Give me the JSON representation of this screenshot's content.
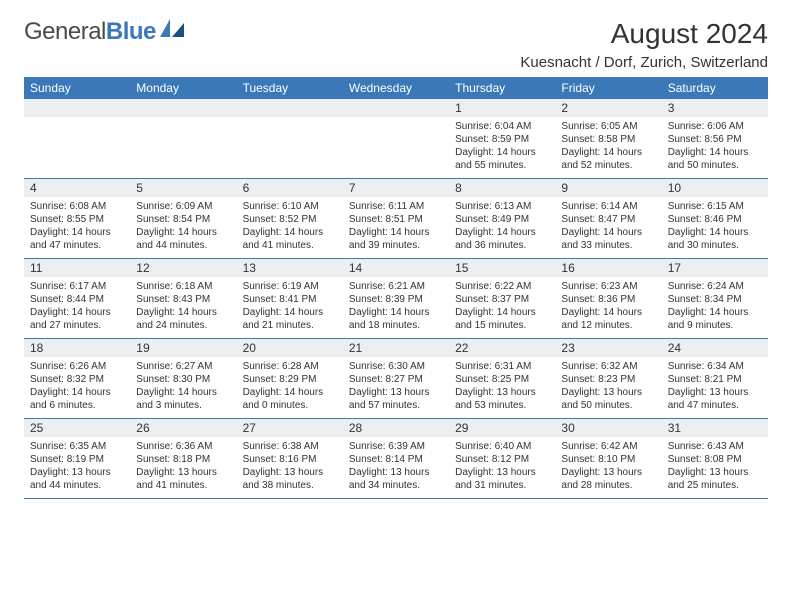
{
  "logo": {
    "text1": "General",
    "text2": "Blue"
  },
  "title": "August 2024",
  "location": "Kuesnacht / Dorf, Zurich, Switzerland",
  "colors": {
    "header_bg": "#3a78b8",
    "header_text": "#ffffff",
    "spacer_bg": "#eceff1",
    "rule": "#3a78b8",
    "body_text": "#333333",
    "logo_gray": "#4a4a4a",
    "logo_blue": "#3a78b8",
    "page_bg": "#ffffff"
  },
  "font": {
    "family": "Arial",
    "title_size": 28,
    "location_size": 15,
    "day_header_size": 12,
    "daynum_size": 12,
    "info_size": 10
  },
  "day_headers": [
    "Sunday",
    "Monday",
    "Tuesday",
    "Wednesday",
    "Thursday",
    "Friday",
    "Saturday"
  ],
  "weeks": [
    [
      null,
      null,
      null,
      null,
      {
        "n": "1",
        "sr": "6:04 AM",
        "ss": "8:59 PM",
        "dl": "14 hours and 55 minutes."
      },
      {
        "n": "2",
        "sr": "6:05 AM",
        "ss": "8:58 PM",
        "dl": "14 hours and 52 minutes."
      },
      {
        "n": "3",
        "sr": "6:06 AM",
        "ss": "8:56 PM",
        "dl": "14 hours and 50 minutes."
      }
    ],
    [
      {
        "n": "4",
        "sr": "6:08 AM",
        "ss": "8:55 PM",
        "dl": "14 hours and 47 minutes."
      },
      {
        "n": "5",
        "sr": "6:09 AM",
        "ss": "8:54 PM",
        "dl": "14 hours and 44 minutes."
      },
      {
        "n": "6",
        "sr": "6:10 AM",
        "ss": "8:52 PM",
        "dl": "14 hours and 41 minutes."
      },
      {
        "n": "7",
        "sr": "6:11 AM",
        "ss": "8:51 PM",
        "dl": "14 hours and 39 minutes."
      },
      {
        "n": "8",
        "sr": "6:13 AM",
        "ss": "8:49 PM",
        "dl": "14 hours and 36 minutes."
      },
      {
        "n": "9",
        "sr": "6:14 AM",
        "ss": "8:47 PM",
        "dl": "14 hours and 33 minutes."
      },
      {
        "n": "10",
        "sr": "6:15 AM",
        "ss": "8:46 PM",
        "dl": "14 hours and 30 minutes."
      }
    ],
    [
      {
        "n": "11",
        "sr": "6:17 AM",
        "ss": "8:44 PM",
        "dl": "14 hours and 27 minutes."
      },
      {
        "n": "12",
        "sr": "6:18 AM",
        "ss": "8:43 PM",
        "dl": "14 hours and 24 minutes."
      },
      {
        "n": "13",
        "sr": "6:19 AM",
        "ss": "8:41 PM",
        "dl": "14 hours and 21 minutes."
      },
      {
        "n": "14",
        "sr": "6:21 AM",
        "ss": "8:39 PM",
        "dl": "14 hours and 18 minutes."
      },
      {
        "n": "15",
        "sr": "6:22 AM",
        "ss": "8:37 PM",
        "dl": "14 hours and 15 minutes."
      },
      {
        "n": "16",
        "sr": "6:23 AM",
        "ss": "8:36 PM",
        "dl": "14 hours and 12 minutes."
      },
      {
        "n": "17",
        "sr": "6:24 AM",
        "ss": "8:34 PM",
        "dl": "14 hours and 9 minutes."
      }
    ],
    [
      {
        "n": "18",
        "sr": "6:26 AM",
        "ss": "8:32 PM",
        "dl": "14 hours and 6 minutes."
      },
      {
        "n": "19",
        "sr": "6:27 AM",
        "ss": "8:30 PM",
        "dl": "14 hours and 3 minutes."
      },
      {
        "n": "20",
        "sr": "6:28 AM",
        "ss": "8:29 PM",
        "dl": "14 hours and 0 minutes."
      },
      {
        "n": "21",
        "sr": "6:30 AM",
        "ss": "8:27 PM",
        "dl": "13 hours and 57 minutes."
      },
      {
        "n": "22",
        "sr": "6:31 AM",
        "ss": "8:25 PM",
        "dl": "13 hours and 53 minutes."
      },
      {
        "n": "23",
        "sr": "6:32 AM",
        "ss": "8:23 PM",
        "dl": "13 hours and 50 minutes."
      },
      {
        "n": "24",
        "sr": "6:34 AM",
        "ss": "8:21 PM",
        "dl": "13 hours and 47 minutes."
      }
    ],
    [
      {
        "n": "25",
        "sr": "6:35 AM",
        "ss": "8:19 PM",
        "dl": "13 hours and 44 minutes."
      },
      {
        "n": "26",
        "sr": "6:36 AM",
        "ss": "8:18 PM",
        "dl": "13 hours and 41 minutes."
      },
      {
        "n": "27",
        "sr": "6:38 AM",
        "ss": "8:16 PM",
        "dl": "13 hours and 38 minutes."
      },
      {
        "n": "28",
        "sr": "6:39 AM",
        "ss": "8:14 PM",
        "dl": "13 hours and 34 minutes."
      },
      {
        "n": "29",
        "sr": "6:40 AM",
        "ss": "8:12 PM",
        "dl": "13 hours and 31 minutes."
      },
      {
        "n": "30",
        "sr": "6:42 AM",
        "ss": "8:10 PM",
        "dl": "13 hours and 28 minutes."
      },
      {
        "n": "31",
        "sr": "6:43 AM",
        "ss": "8:08 PM",
        "dl": "13 hours and 25 minutes."
      }
    ]
  ],
  "labels": {
    "sunrise": "Sunrise:",
    "sunset": "Sunset:",
    "daylight": "Daylight:"
  }
}
